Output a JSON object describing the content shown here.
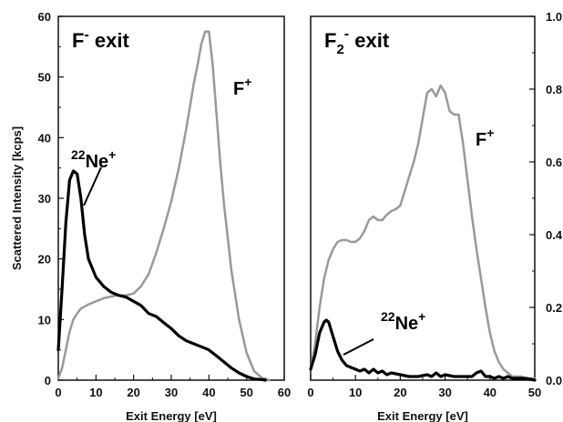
{
  "chart_data": [
    {
      "type": "line",
      "title_base": "F",
      "title_sup": "-",
      "title_rest": " exit",
      "xlabel": "Exit Energy [eV]",
      "ylabel": "Scattered Intensity [kcps]",
      "xlim": [
        0,
        60
      ],
      "ylim": [
        0,
        60
      ],
      "xticks": [
        "0",
        "10",
        "20",
        "30",
        "40",
        "50",
        "60"
      ],
      "yticks": [
        "0",
        "10",
        "20",
        "30",
        "40",
        "50",
        "60"
      ],
      "ion_label_base": "F",
      "ion_label_sup": "+",
      "ne_label_sup": "22",
      "ne_label_base": "Ne",
      "ne_label_charge": "+",
      "series": [
        {
          "name": "F+",
          "color": "#999999",
          "x": [
            0,
            1,
            2,
            3,
            4,
            5,
            6,
            8,
            10,
            12,
            14,
            16,
            18,
            20,
            22,
            24,
            26,
            28,
            30,
            32,
            34,
            36,
            37,
            38,
            39,
            40,
            41,
            42,
            43,
            44,
            46,
            48,
            50,
            52,
            54,
            56
          ],
          "y": [
            0.3,
            2,
            5,
            8,
            10,
            11,
            11.8,
            12.5,
            13,
            13.5,
            13.8,
            14,
            14,
            14.3,
            15.5,
            17.5,
            21,
            25,
            29.5,
            35,
            41.5,
            49,
            52,
            55.5,
            57.5,
            57.5,
            52,
            44,
            36,
            29,
            18,
            10,
            4.5,
            1.5,
            0.4,
            0
          ]
        },
        {
          "name": "22Ne+",
          "color": "#000000",
          "x": [
            0,
            1,
            2,
            3,
            4,
            5,
            6,
            7,
            8,
            10,
            12,
            14,
            16,
            18,
            20,
            22,
            24,
            26,
            28,
            30,
            32,
            34,
            36,
            38,
            40,
            42,
            44,
            46,
            48,
            50,
            52,
            54,
            55
          ],
          "y": [
            5,
            15,
            26,
            33,
            34.5,
            34,
            30,
            24,
            20,
            17,
            15.5,
            14.5,
            14,
            13.7,
            13,
            12.3,
            11,
            10.5,
            9.5,
            8.5,
            7.3,
            6.5,
            6,
            5.5,
            5,
            4,
            3,
            2,
            1.2,
            0.6,
            0.2,
            0.1,
            0
          ]
        }
      ]
    },
    {
      "type": "line",
      "title_base": "F",
      "title_sub": "2",
      "title_sup": "-",
      "title_rest": " exit",
      "xlabel": "Exit Energy [eV]",
      "xlim": [
        0,
        50
      ],
      "ylim": [
        0,
        1.0
      ],
      "xticks": [
        "0",
        "10",
        "20",
        "30",
        "40",
        "50"
      ],
      "yticks": [
        "0.0",
        "0.2",
        "0.4",
        "0.6",
        "0.8",
        "1.0"
      ],
      "ion_label_base": "F",
      "ion_label_sup": "+",
      "ne_label_sup": "22",
      "ne_label_base": "Ne",
      "ne_label_charge": "+",
      "series": [
        {
          "name": "F+",
          "color": "#999999",
          "x": [
            0,
            1,
            2,
            3,
            4,
            5,
            6,
            7,
            8,
            9,
            10,
            11,
            12,
            13,
            14,
            15,
            16,
            17,
            18,
            19,
            20,
            21,
            22,
            23,
            24,
            25,
            26,
            27,
            28,
            29,
            30,
            31,
            32,
            33,
            34,
            35,
            36,
            37,
            38,
            39,
            40,
            41,
            42,
            43,
            44,
            45,
            46,
            47,
            48,
            49,
            50
          ],
          "y": [
            0.03,
            0.1,
            0.2,
            0.28,
            0.33,
            0.36,
            0.38,
            0.385,
            0.385,
            0.38,
            0.38,
            0.39,
            0.41,
            0.44,
            0.45,
            0.44,
            0.44,
            0.455,
            0.465,
            0.47,
            0.48,
            0.52,
            0.56,
            0.6,
            0.65,
            0.72,
            0.79,
            0.8,
            0.78,
            0.81,
            0.79,
            0.74,
            0.73,
            0.73,
            0.65,
            0.55,
            0.45,
            0.36,
            0.28,
            0.2,
            0.13,
            0.08,
            0.05,
            0.03,
            0.02,
            0.01,
            0.01,
            0.01,
            0.005,
            0.005,
            0.005
          ]
        },
        {
          "name": "22Ne+",
          "color": "#000000",
          "x": [
            0,
            1,
            2,
            3,
            3.5,
            4,
            5,
            6,
            7,
            8,
            9,
            10,
            11,
            12,
            13,
            14,
            15,
            16,
            17,
            18,
            20,
            22,
            24,
            26,
            27,
            28,
            29,
            30,
            32,
            34,
            36,
            37,
            38,
            39,
            40,
            41,
            42,
            43,
            44,
            45,
            46,
            48,
            50
          ],
          "y": [
            0.03,
            0.07,
            0.13,
            0.16,
            0.165,
            0.16,
            0.12,
            0.08,
            0.055,
            0.04,
            0.035,
            0.03,
            0.025,
            0.03,
            0.02,
            0.03,
            0.02,
            0.025,
            0.015,
            0.02,
            0.015,
            0.01,
            0.01,
            0.015,
            0.01,
            0.02,
            0.01,
            0.015,
            0.01,
            0.01,
            0.01,
            0.02,
            0.025,
            0.01,
            0.01,
            0.005,
            0.01,
            0.005,
            0.01,
            0.005,
            0.005,
            0.005,
            0.0
          ]
        }
      ]
    }
  ]
}
